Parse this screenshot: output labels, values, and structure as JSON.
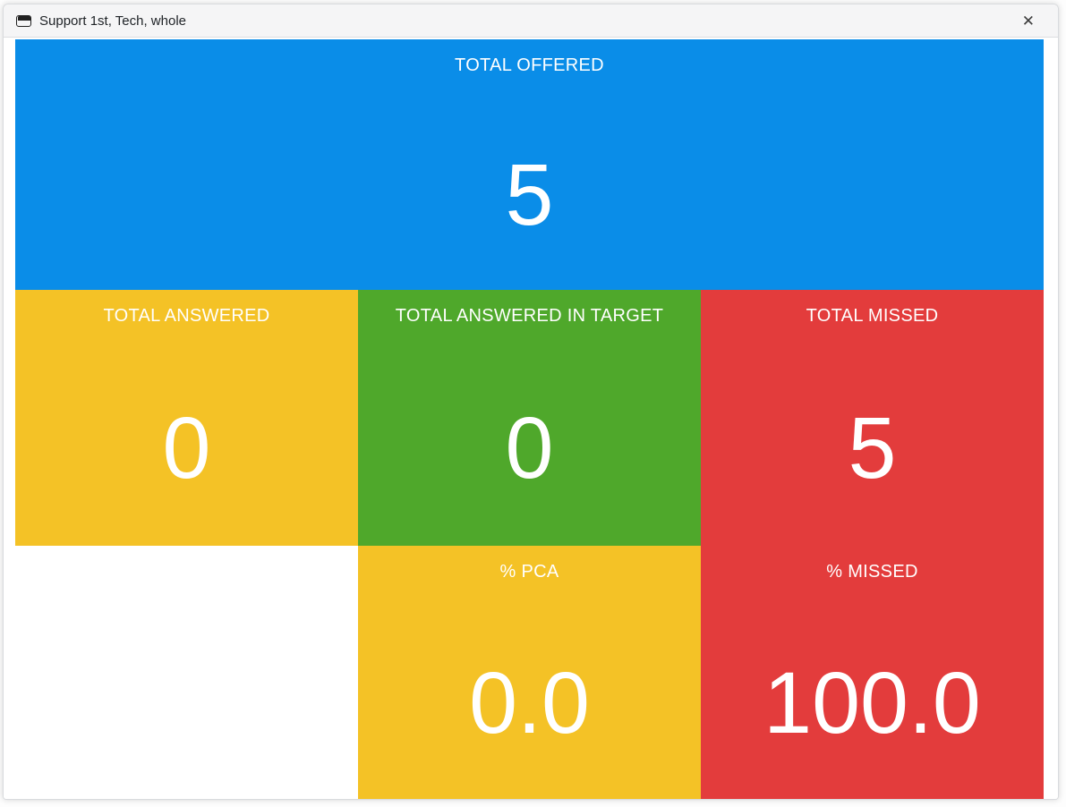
{
  "window": {
    "title": "Support 1st, Tech, whole",
    "close_label": "✕"
  },
  "colors": {
    "blue": "#0A8DE8",
    "yellow": "#F4C226",
    "green": "#4FA82B",
    "red": "#E33C3C",
    "titlebar_bg": "#f5f5f6",
    "text_on_tile": "#ffffff"
  },
  "tiles": [
    {
      "id": "total-offered",
      "label": "TOTAL OFFERED",
      "value": "5",
      "color": "#0A8DE8"
    },
    {
      "id": "total-answered",
      "label": "TOTAL ANSWERED",
      "value": "0",
      "color": "#F4C226"
    },
    {
      "id": "total-answered-in-target",
      "label": "TOTAL ANSWERED IN TARGET",
      "value": "0",
      "color": "#4FA82B"
    },
    {
      "id": "total-missed",
      "label": "TOTAL MISSED",
      "value": "5",
      "color": "#E33C3C"
    },
    {
      "id": "pct-pca",
      "label": "% PCA",
      "value": "0.0",
      "color": "#F4C226"
    },
    {
      "id": "pct-missed",
      "label": "% MISSED",
      "value": "100.0",
      "color": "#E33C3C"
    }
  ]
}
